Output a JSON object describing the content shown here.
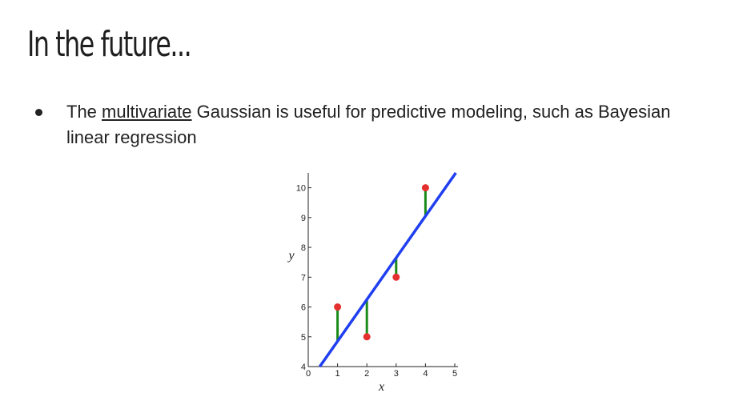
{
  "slide": {
    "title": "In the future...",
    "bullet": {
      "before": "The ",
      "underlined": "multivariate",
      "after": " Gaussian is useful for predictive modeling, such as Bayesian linear regression"
    }
  },
  "chart_data": {
    "type": "scatter",
    "xlabel": "x",
    "ylabel": "y",
    "xlim": [
      0,
      5
    ],
    "ylim": [
      4,
      10.5
    ],
    "x_ticks": [
      0,
      1,
      2,
      3,
      4,
      5
    ],
    "y_ticks": [
      4,
      5,
      6,
      7,
      8,
      9,
      10
    ],
    "points": [
      {
        "x": 1,
        "y": 6
      },
      {
        "x": 2,
        "y": 5
      },
      {
        "x": 3,
        "y": 7
      },
      {
        "x": 4,
        "y": 10
      }
    ],
    "fit_line": {
      "slope": 1.4,
      "intercept": 3.45
    },
    "colors": {
      "line": "#1f3ff0",
      "points": "#e53030",
      "residuals": "#1a8a1a"
    }
  }
}
